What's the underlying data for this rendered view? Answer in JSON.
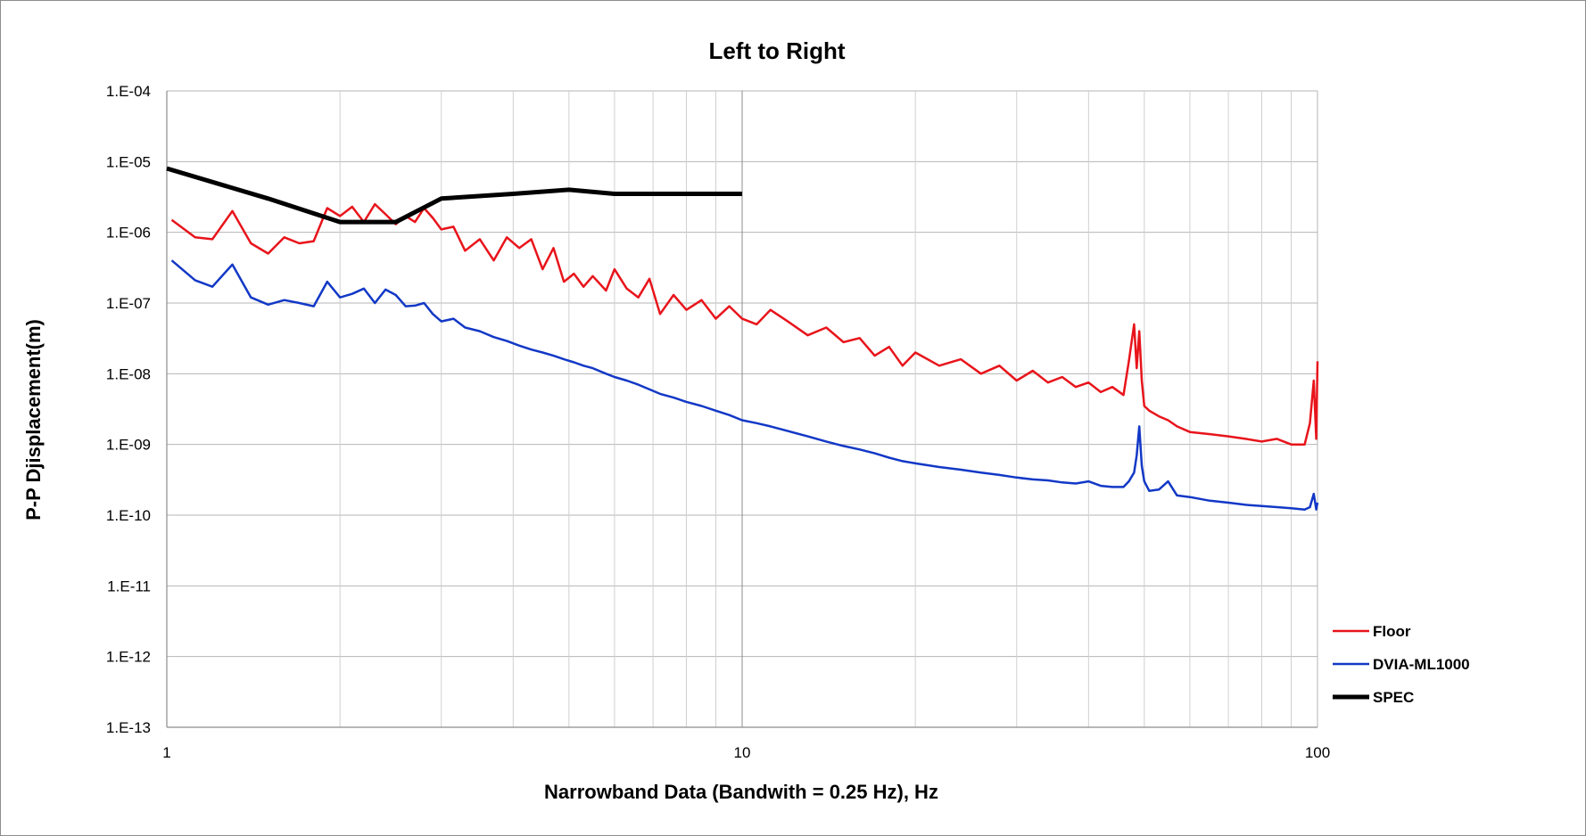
{
  "chart_data": {
    "type": "line",
    "title": "Left to Right",
    "xlabel": "Narrowband Data (Bandwith = 0.25 Hz), Hz",
    "ylabel": "P-P Djisplacement(m)",
    "x_scale": "log",
    "y_scale": "log",
    "xlim": [
      1,
      100
    ],
    "ylim": [
      1e-13,
      0.0001
    ],
    "x_ticks": [
      "1",
      "10",
      "100"
    ],
    "y_ticks": [
      "1.E-13",
      "1.E-12",
      "1.E-11",
      "1.E-10",
      "1.E-09",
      "1.E-08",
      "1.E-07",
      "1.E-06",
      "1.E-05",
      "1.E-04"
    ],
    "grid": true,
    "legend_position": "right",
    "series": [
      {
        "name": "Floor",
        "color": "#e8141b",
        "x": [
          1.02,
          1.12,
          1.2,
          1.3,
          1.4,
          1.5,
          1.6,
          1.7,
          1.8,
          1.9,
          2.0,
          2.1,
          2.2,
          2.3,
          2.4,
          2.5,
          2.6,
          2.7,
          2.8,
          2.9,
          3.0,
          3.15,
          3.3,
          3.5,
          3.7,
          3.9,
          4.1,
          4.3,
          4.5,
          4.7,
          4.9,
          5.1,
          5.3,
          5.5,
          5.8,
          6.0,
          6.3,
          6.6,
          6.9,
          7.2,
          7.6,
          8.0,
          8.5,
          9.0,
          9.5,
          10.0,
          10.6,
          11.2,
          12.0,
          13.0,
          14.0,
          15.0,
          16.0,
          17.0,
          18.0,
          19.0,
          20.0,
          22.0,
          24.0,
          26.0,
          28.0,
          30.0,
          32.0,
          34.0,
          36.0,
          38.0,
          40.0,
          42.0,
          44.0,
          46.0,
          47.0,
          48.0,
          48.5,
          49.0,
          49.5,
          50.0,
          51.0,
          53.0,
          55.0,
          57.0,
          60.0,
          65.0,
          70.0,
          75.0,
          80.0,
          85.0,
          90.0,
          95.0,
          97.0,
          98.5,
          99.5,
          100.0
        ],
        "y": [
          1.5e-06,
          8.5e-07,
          8e-07,
          2e-06,
          7e-07,
          5e-07,
          8.5e-07,
          7e-07,
          7.5e-07,
          2.2e-06,
          1.7e-06,
          2.3e-06,
          1.4e-06,
          2.5e-06,
          1.8e-06,
          1.3e-06,
          1.7e-06,
          1.4e-06,
          2.2e-06,
          1.6e-06,
          1.1e-06,
          1.2e-06,
          5.5e-07,
          8e-07,
          4e-07,
          8.5e-07,
          6e-07,
          8e-07,
          3e-07,
          6e-07,
          2e-07,
          2.6e-07,
          1.7e-07,
          2.4e-07,
          1.5e-07,
          3e-07,
          1.6e-07,
          1.2e-07,
          2.2e-07,
          7e-08,
          1.3e-07,
          8e-08,
          1.1e-07,
          6e-08,
          9e-08,
          6e-08,
          5e-08,
          8e-08,
          5.5e-08,
          3.5e-08,
          4.5e-08,
          2.8e-08,
          3.2e-08,
          1.8e-08,
          2.4e-08,
          1.3e-08,
          2e-08,
          1.3e-08,
          1.6e-08,
          1e-08,
          1.3e-08,
          8e-09,
          1.1e-08,
          7.5e-09,
          9e-09,
          6.5e-09,
          7.5e-09,
          5.5e-09,
          6.5e-09,
          5e-09,
          1.5e-08,
          5e-08,
          1.2e-08,
          4e-08,
          8e-09,
          3.5e-09,
          3e-09,
          2.5e-09,
          2.2e-09,
          1.8e-09,
          1.5e-09,
          1.4e-09,
          1.3e-09,
          1.2e-09,
          1.1e-09,
          1.2e-09,
          1e-09,
          1e-09,
          2e-09,
          8e-09,
          1.2e-09,
          1.5e-08
        ]
      },
      {
        "name": "DVIA-ML1000",
        "color": "#1238c6",
        "x": [
          1.02,
          1.12,
          1.2,
          1.3,
          1.4,
          1.5,
          1.6,
          1.7,
          1.8,
          1.9,
          2.0,
          2.1,
          2.2,
          2.3,
          2.4,
          2.5,
          2.6,
          2.7,
          2.8,
          2.9,
          3.0,
          3.15,
          3.3,
          3.5,
          3.7,
          3.9,
          4.1,
          4.3,
          4.5,
          4.7,
          4.9,
          5.1,
          5.3,
          5.5,
          5.8,
          6.0,
          6.3,
          6.6,
          6.9,
          7.2,
          7.6,
          8.0,
          8.5,
          9.0,
          9.5,
          10.0,
          10.6,
          11.2,
          12.0,
          13.0,
          14.0,
          15.0,
          16.0,
          17.0,
          18.0,
          19.0,
          20.0,
          22.0,
          24.0,
          26.0,
          28.0,
          30.0,
          32.0,
          34.0,
          36.0,
          38.0,
          40.0,
          42.0,
          44.0,
          46.0,
          47.0,
          48.0,
          48.5,
          49.0,
          49.5,
          50.0,
          51.0,
          53.0,
          55.0,
          57.0,
          60.0,
          65.0,
          70.0,
          75.0,
          80.0,
          85.0,
          90.0,
          95.0,
          97.0,
          98.5,
          99.5,
          100.0
        ],
        "y": [
          4e-07,
          2.1e-07,
          1.7e-07,
          3.5e-07,
          1.2e-07,
          9.5e-08,
          1.1e-07,
          1e-07,
          9e-08,
          2e-07,
          1.2e-07,
          1.35e-07,
          1.6e-07,
          1e-07,
          1.55e-07,
          1.3e-07,
          9e-08,
          9.2e-08,
          1e-07,
          7e-08,
          5.5e-08,
          6e-08,
          4.5e-08,
          4e-08,
          3.3e-08,
          2.9e-08,
          2.5e-08,
          2.2e-08,
          2e-08,
          1.8e-08,
          1.6e-08,
          1.45e-08,
          1.3e-08,
          1.2e-08,
          1e-08,
          9e-09,
          8e-09,
          7e-09,
          6e-09,
          5.2e-09,
          4.6e-09,
          4e-09,
          3.5e-09,
          3e-09,
          2.6e-09,
          2.2e-09,
          2e-09,
          1.8e-09,
          1.55e-09,
          1.3e-09,
          1.1e-09,
          9.5e-10,
          8.5e-10,
          7.5e-10,
          6.5e-10,
          5.8e-10,
          5.4e-10,
          4.8e-10,
          4.4e-10,
          4e-10,
          3.7e-10,
          3.4e-10,
          3.2e-10,
          3.1e-10,
          2.9e-10,
          2.8e-10,
          3e-10,
          2.6e-10,
          2.5e-10,
          2.5e-10,
          3e-10,
          4e-10,
          7e-10,
          1.8e-09,
          5e-10,
          3e-10,
          2.2e-10,
          2.3e-10,
          3e-10,
          1.9e-10,
          1.8e-10,
          1.6e-10,
          1.5e-10,
          1.4e-10,
          1.35e-10,
          1.3e-10,
          1.25e-10,
          1.2e-10,
          1.3e-10,
          2e-10,
          1.2e-10,
          1.5e-10
        ]
      },
      {
        "name": "SPEC",
        "color": "#000000",
        "x": [
          1.0,
          1.5,
          2.0,
          2.5,
          3.0,
          4.0,
          5.0,
          6.0,
          10.0
        ],
        "y": [
          8e-06,
          3e-06,
          1.4e-06,
          1.4e-06,
          3e-06,
          3.5e-06,
          4e-06,
          3.5e-06,
          3.5e-06
        ]
      }
    ]
  }
}
